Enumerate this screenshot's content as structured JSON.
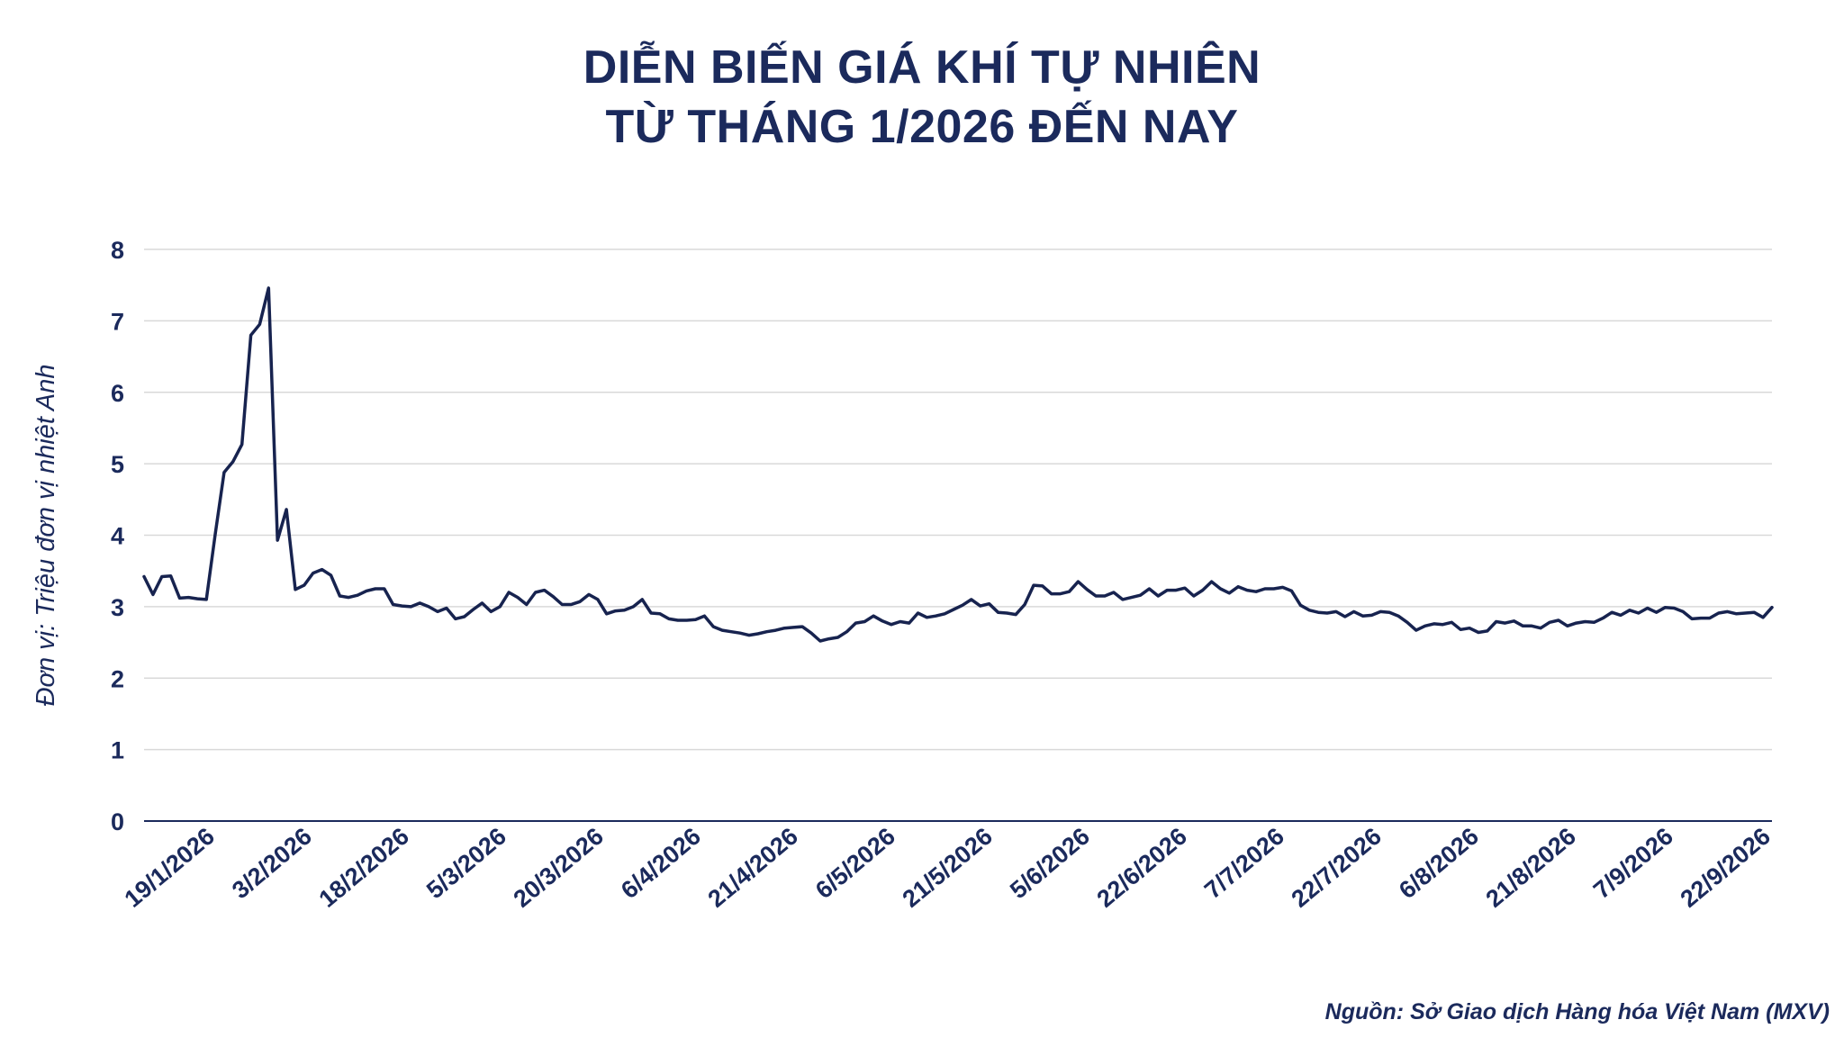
{
  "title": {
    "line1": "DIỄN BIẾN GIÁ KHÍ TỰ NHIÊN",
    "line2": "TỪ THÁNG 1/2026 ĐẾN NAY"
  },
  "source": "Nguồn: Sở Giao dịch Hàng hóa Việt Nam (MXV)",
  "colors": {
    "line": "#17234f",
    "text": "#1b2a5c",
    "grid": "#d9d9d9",
    "axis": "#1b2a5c"
  },
  "chart_data": {
    "type": "line",
    "title": "DIỄN BIẾN GIÁ KHÍ TỰ NHIÊN TỪ THÁNG 1/2026 ĐẾN NAY",
    "xlabel": "",
    "ylabel": "Đơn vị: Triệu đơn vị nhiệt Anh",
    "ylim": [
      0,
      8
    ],
    "yticks": [
      0,
      1,
      2,
      3,
      4,
      5,
      6,
      7,
      8
    ],
    "grid": true,
    "legend": "none",
    "x_tick_labels": [
      "19/1/2026",
      "3/2/2026",
      "18/2/2026",
      "5/3/2026",
      "20/3/2026",
      "6/4/2026",
      "21/4/2026",
      "6/5/2026",
      "21/5/2026",
      "5/6/2026",
      "22/6/2026",
      "7/7/2026",
      "22/7/2026",
      "6/8/2026",
      "21/8/2026",
      "7/9/2026",
      "22/9/2026"
    ],
    "series": [
      {
        "values": [
          3.42,
          3.17,
          3.42,
          3.43,
          3.12,
          3.13,
          3.11,
          3.1,
          4.01,
          4.88,
          5.03,
          5.27,
          6.8,
          6.95,
          7.46,
          3.93,
          4.36,
          3.24,
          3.3,
          3.47,
          3.52,
          3.44,
          3.15,
          3.13,
          3.16,
          3.22,
          3.25,
          3.25,
          3.03,
          3.01,
          3.0,
          3.05,
          3.0,
          2.93,
          2.98,
          2.83,
          2.86,
          2.96,
          3.05,
          2.93,
          3.0,
          3.2,
          3.13,
          3.03,
          3.2,
          3.23,
          3.14,
          3.03,
          3.03,
          3.07,
          3.17,
          3.1,
          2.9,
          2.94,
          2.95,
          3.0,
          3.1,
          2.91,
          2.9,
          2.83,
          2.81,
          2.81,
          2.82,
          2.87,
          2.72,
          2.67,
          2.65,
          2.63,
          2.6,
          2.62,
          2.65,
          2.67,
          2.7,
          2.71,
          2.72,
          2.63,
          2.52,
          2.55,
          2.57,
          2.65,
          2.77,
          2.79,
          2.87,
          2.8,
          2.75,
          2.79,
          2.77,
          2.91,
          2.85,
          2.87,
          2.9,
          2.96,
          3.02,
          3.1,
          3.01,
          3.04,
          2.92,
          2.91,
          2.89,
          3.03,
          3.3,
          3.29,
          3.18,
          3.18,
          3.21,
          3.35,
          3.24,
          3.15,
          3.15,
          3.2,
          3.1,
          3.13,
          3.16,
          3.25,
          3.15,
          3.23,
          3.23,
          3.26,
          3.15,
          3.23,
          3.35,
          3.25,
          3.19,
          3.28,
          3.23,
          3.21,
          3.25,
          3.25,
          3.27,
          3.22,
          3.02,
          2.95,
          2.92,
          2.91,
          2.93,
          2.86,
          2.93,
          2.87,
          2.88,
          2.93,
          2.92,
          2.87,
          2.78,
          2.67,
          2.73,
          2.76,
          2.75,
          2.78,
          2.68,
          2.7,
          2.64,
          2.66,
          2.79,
          2.77,
          2.8,
          2.73,
          2.73,
          2.7,
          2.78,
          2.81,
          2.73,
          2.77,
          2.79,
          2.78,
          2.84,
          2.92,
          2.88,
          2.95,
          2.91,
          2.98,
          2.92,
          2.99,
          2.98,
          2.93,
          2.83,
          2.84,
          2.84,
          2.91,
          2.93,
          2.9,
          2.91,
          2.92,
          2.85,
          2.99
        ]
      }
    ]
  }
}
